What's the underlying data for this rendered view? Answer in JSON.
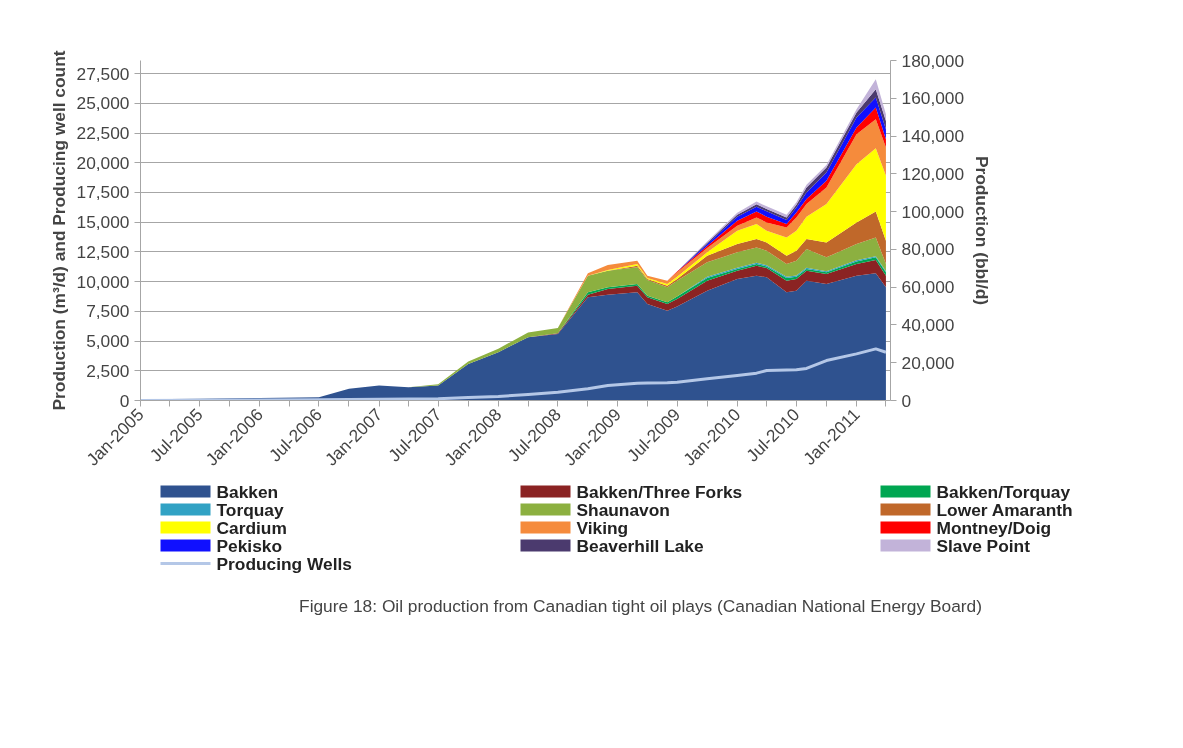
{
  "chart_data": {
    "type": "area",
    "stacked": true,
    "ylabel": "Production (m³/d) and Producing well count",
    "y2label": "Production (bbl/d)",
    "annotations": [
      "Figure 18: Oil production from Canadian tight oil plays (Canadian National Energy Board)"
    ],
    "x": [
      "2005-01",
      "2005-07",
      "2006-01",
      "2006-07",
      "2006-10",
      "2007-01",
      "2007-04",
      "2007-07",
      "2007-10",
      "2008-01",
      "2008-04",
      "2008-07",
      "2008-10",
      "2008-12",
      "2009-03",
      "2009-04",
      "2009-06",
      "2009-07",
      "2009-10",
      "2010-01",
      "2010-03",
      "2010-04",
      "2010-06",
      "2010-07",
      "2010-08",
      "2010-10",
      "2011-01",
      "2011-03",
      "2011-04"
    ],
    "xlim": [
      "2005-01",
      "2011-04-15"
    ],
    "xticks": [
      {
        "value": "2005-01",
        "label": "Jan-2005"
      },
      {
        "value": "2005-04",
        "label": null
      },
      {
        "value": "2005-07",
        "label": "Jul-2005"
      },
      {
        "value": "2005-10",
        "label": null
      },
      {
        "value": "2006-01",
        "label": "Jan-2006"
      },
      {
        "value": "2006-04",
        "label": null
      },
      {
        "value": "2006-07",
        "label": "Jul-2006"
      },
      {
        "value": "2006-10",
        "label": null
      },
      {
        "value": "2007-01",
        "label": "Jan-2007"
      },
      {
        "value": "2007-04",
        "label": null
      },
      {
        "value": "2007-07",
        "label": "Jul-2007"
      },
      {
        "value": "2007-10",
        "label": null
      },
      {
        "value": "2008-01",
        "label": "Jan-2008"
      },
      {
        "value": "2008-04",
        "label": null
      },
      {
        "value": "2008-07",
        "label": "Jul-2008"
      },
      {
        "value": "2008-10",
        "label": null
      },
      {
        "value": "2009-01",
        "label": "Jan-2009"
      },
      {
        "value": "2009-04",
        "label": null
      },
      {
        "value": "2009-07",
        "label": "Jul-2009"
      },
      {
        "value": "2009-10",
        "label": null
      },
      {
        "value": "2010-01",
        "label": "Jan-2010"
      },
      {
        "value": "2010-04",
        "label": null
      },
      {
        "value": "2010-07",
        "label": "Jul-2010"
      },
      {
        "value": "2010-10",
        "label": null
      },
      {
        "value": "2011-01",
        "label": "Jan-2011"
      },
      {
        "value": "2011-04",
        "label": null
      }
    ],
    "ylim": [
      0,
      28600
    ],
    "yticks": [
      0,
      {
        "value": 2500,
        "label": "2,500"
      },
      {
        "value": 5000,
        "label": "5,000"
      },
      {
        "value": 7500,
        "label": "7,500"
      },
      {
        "value": 10000,
        "label": "10,000"
      },
      {
        "value": 12500,
        "label": "12,500"
      },
      {
        "value": 15000,
        "label": "15,000"
      },
      {
        "value": 17500,
        "label": "17,500"
      },
      {
        "value": 20000,
        "label": "20,000"
      },
      {
        "value": 22500,
        "label": "22,500"
      },
      {
        "value": 25000,
        "label": "25,000"
      },
      {
        "value": 27500,
        "label": "27,500"
      }
    ],
    "y2lim": [
      0,
      180000
    ],
    "y2ticks": [
      0,
      {
        "value": 20000,
        "label": "20,000"
      },
      {
        "value": 40000,
        "label": "40,000"
      },
      {
        "value": 60000,
        "label": "60,000"
      },
      {
        "value": 80000,
        "label": "80,000"
      },
      {
        "value": 100000,
        "label": "100,000"
      },
      {
        "value": 120000,
        "label": "120,000"
      },
      {
        "value": 140000,
        "label": "140,000"
      },
      {
        "value": 160000,
        "label": "160,000"
      },
      {
        "value": 180000,
        "label": "180,000"
      }
    ],
    "grid": "y",
    "legend": "bottom",
    "series": [
      {
        "name": "Bakken",
        "color": "#2f528f",
        "values": [
          100,
          140,
          220,
          280,
          980,
          1260,
          1120,
          1260,
          3080,
          4060,
          5320,
          5600,
          8680,
          8900,
          9100,
          8120,
          7560,
          7900,
          9240,
          10220,
          10500,
          10360,
          9100,
          9240,
          10080,
          9800,
          10500,
          10700,
          9520
        ]
      },
      {
        "name": "Bakken/Three Forks",
        "color": "#8b2323",
        "values": [
          0,
          0,
          0,
          0,
          0,
          0,
          0,
          0,
          0,
          0,
          0,
          50,
          220,
          480,
          560,
          560,
          560,
          640,
          840,
          700,
          840,
          780,
          980,
          980,
          840,
          840,
          980,
          1120,
          980
        ]
      },
      {
        "name": "Bakken/Torquay",
        "color": "#00a651",
        "values": [
          0,
          0,
          0,
          0,
          0,
          0,
          0,
          0,
          0,
          0,
          0,
          0,
          200,
          140,
          140,
          140,
          140,
          200,
          220,
          140,
          140,
          140,
          220,
          200,
          140,
          140,
          220,
          220,
          280
        ]
      },
      {
        "name": "Torquay",
        "color": "#31a2c4",
        "values": [
          0,
          0,
          0,
          0,
          0,
          0,
          0,
          0,
          0,
          0,
          0,
          0,
          0,
          0,
          0,
          0,
          0,
          0,
          100,
          100,
          100,
          100,
          100,
          100,
          100,
          100,
          100,
          100,
          100
        ]
      },
      {
        "name": "Shaunavon",
        "color": "#8cb040",
        "values": [
          0,
          0,
          0,
          0,
          0,
          0,
          0,
          100,
          200,
          300,
          400,
          450,
          1400,
          1400,
          1400,
          1320,
          1260,
          1340,
          1220,
          1300,
          1300,
          1220,
          1080,
          1240,
          1580,
          1160,
          1360,
          1580,
          600
        ]
      },
      {
        "name": "Lower Amaranth",
        "color": "#c0682a",
        "values": [
          0,
          0,
          0,
          0,
          0,
          0,
          0,
          0,
          0,
          0,
          0,
          0,
          0,
          0,
          140,
          80,
          140,
          140,
          560,
          700,
          700,
          700,
          700,
          840,
          840,
          1260,
          1820,
          2180,
          1960
        ]
      },
      {
        "name": "Cardium",
        "color": "#ffff00",
        "values": [
          0,
          0,
          0,
          0,
          0,
          0,
          0,
          0,
          0,
          0,
          0,
          0,
          0,
          50,
          140,
          80,
          140,
          200,
          280,
          1120,
          1260,
          980,
          1540,
          1680,
          1880,
          3220,
          4900,
          5320,
          5460
        ]
      },
      {
        "name": "Viking",
        "color": "#f58b3c",
        "values": [
          0,
          0,
          0,
          0,
          0,
          0,
          0,
          0,
          0,
          0,
          0,
          0,
          200,
          420,
          280,
          200,
          280,
          360,
          364,
          420,
          560,
          700,
          840,
          1120,
          1060,
          1400,
          2520,
          2440,
          2380
        ]
      },
      {
        "name": "Montney/Doig",
        "color": "#ff0000",
        "values": [
          0,
          0,
          0,
          0,
          0,
          0,
          0,
          0,
          0,
          0,
          0,
          0,
          0,
          0,
          0,
          0,
          0,
          80,
          170,
          420,
          500,
          480,
          280,
          420,
          420,
          560,
          560,
          980,
          700
        ]
      },
      {
        "name": "Pekisko",
        "color": "#1010ff",
        "values": [
          0,
          0,
          0,
          0,
          0,
          0,
          0,
          0,
          0,
          0,
          0,
          0,
          0,
          0,
          0,
          0,
          0,
          0,
          170,
          340,
          390,
          450,
          340,
          420,
          560,
          700,
          840,
          840,
          840
        ]
      },
      {
        "name": "Beaverhill Lake",
        "color": "#4b3a6e",
        "values": [
          0,
          0,
          0,
          0,
          0,
          0,
          0,
          0,
          0,
          0,
          0,
          0,
          0,
          0,
          0,
          0,
          0,
          0,
          110,
          170,
          220,
          200,
          220,
          220,
          420,
          420,
          420,
          700,
          700
        ]
      },
      {
        "name": "Slave Point",
        "color": "#c2b3d9",
        "values": [
          0,
          0,
          0,
          0,
          0,
          0,
          0,
          0,
          0,
          0,
          0,
          0,
          0,
          0,
          0,
          0,
          0,
          0,
          110,
          170,
          220,
          220,
          220,
          220,
          220,
          220,
          280,
          840,
          560
        ]
      },
      {
        "name": "Producing Wells",
        "type": "line",
        "color": "#b4c7e7",
        "values": [
          0,
          20,
          50,
          70,
          80,
          100,
          120,
          150,
          250,
          340,
          500,
          700,
          980,
          1260,
          1460,
          1480,
          1500,
          1540,
          1820,
          2100,
          2300,
          2520,
          2560,
          2580,
          2700,
          3360,
          3920,
          4340,
          4060
        ]
      }
    ]
  }
}
